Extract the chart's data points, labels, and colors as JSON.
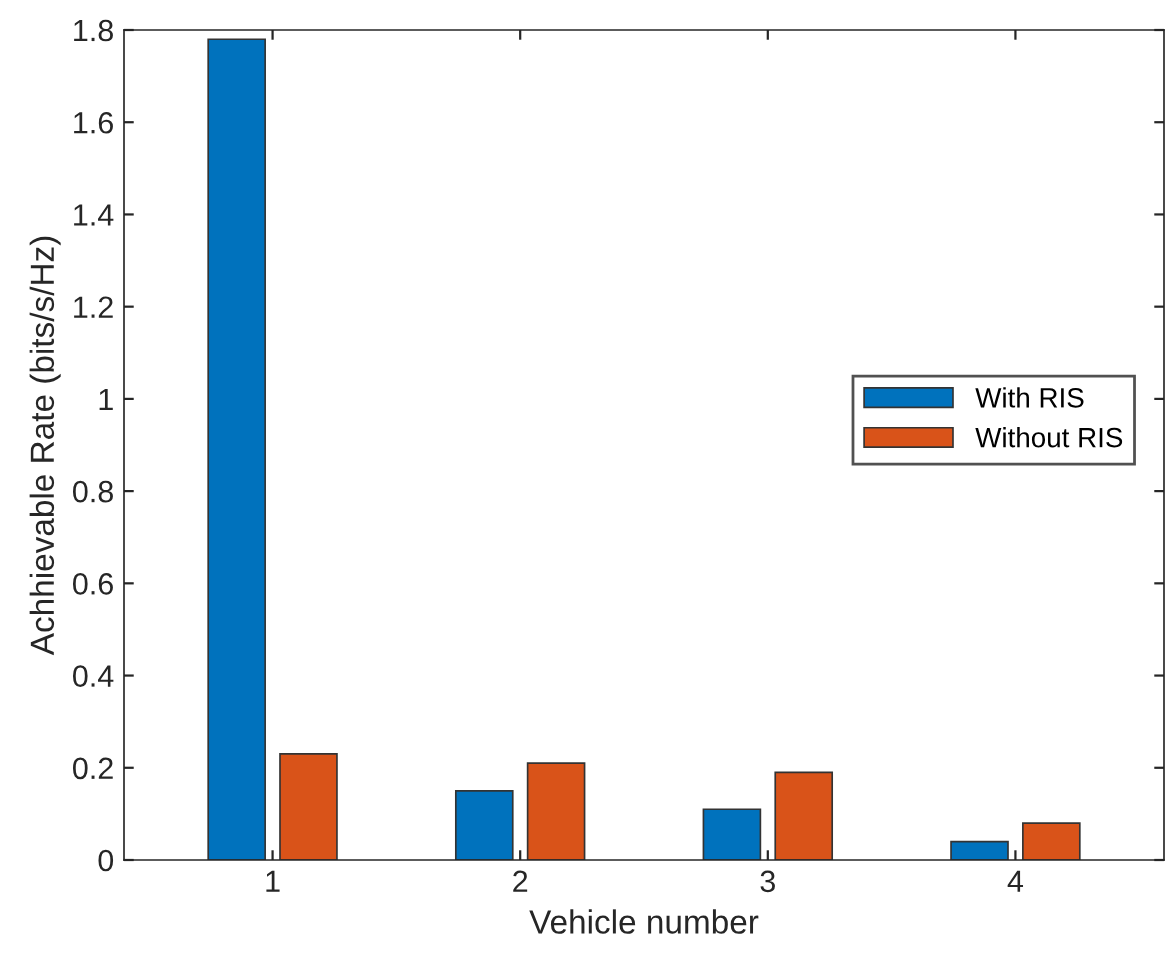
{
  "chart_data": {
    "type": "bar",
    "xlabel": "Vehicle number",
    "ylabel": "Achhievable Rate (bits/s/Hz)",
    "categories": [
      "1",
      "2",
      "3",
      "4"
    ],
    "series": [
      {
        "name": "With RIS",
        "color": "#0072bd",
        "values": [
          1.78,
          0.15,
          0.11,
          0.04
        ]
      },
      {
        "name": "Without RIS",
        "color": "#d95319",
        "values": [
          0.23,
          0.21,
          0.19,
          0.08
        ]
      }
    ],
    "ylim": [
      0,
      1.8
    ],
    "yticks": [
      0,
      0.2,
      0.4,
      0.6,
      0.8,
      1,
      1.2,
      1.4,
      1.6,
      1.8
    ],
    "legend": "right",
    "grid": false
  }
}
